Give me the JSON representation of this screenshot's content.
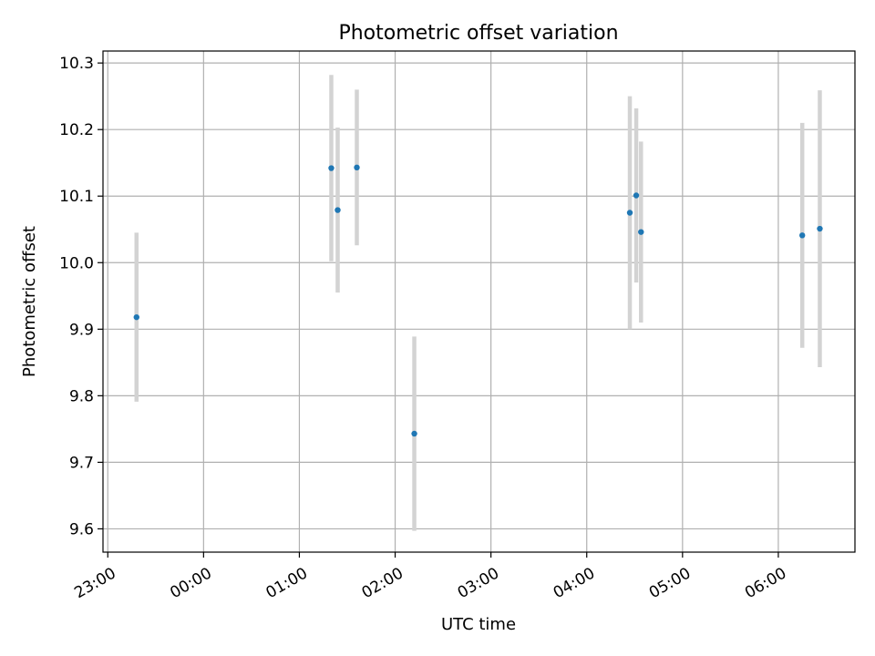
{
  "chart_data": {
    "type": "scatter",
    "title": "Photometric offset variation",
    "xlabel": "UTC time",
    "ylabel": "Photometric offset",
    "xlim": [
      "22:57",
      "06:48"
    ],
    "ylim": [
      9.565,
      10.318
    ],
    "grid": true,
    "x_ticks": [
      "23:00",
      "00:00",
      "01:00",
      "02:00",
      "03:00",
      "04:00",
      "05:00",
      "06:00"
    ],
    "y_ticks": [
      9.6,
      9.7,
      9.8,
      9.9,
      10.0,
      10.1,
      10.2,
      10.3
    ],
    "point_color": "#1f77b4",
    "errorbar_color": "#d3d3d3",
    "points": [
      {
        "x": "23:18",
        "y": 9.918,
        "err": 0.127
      },
      {
        "x": "01:20",
        "y": 10.142,
        "err": 0.14
      },
      {
        "x": "01:24",
        "y": 10.079,
        "err": 0.124
      },
      {
        "x": "01:36",
        "y": 10.143,
        "err": 0.117
      },
      {
        "x": "02:12",
        "y": 9.743,
        "err": 0.146
      },
      {
        "x": "04:27",
        "y": 10.075,
        "err": 0.175
      },
      {
        "x": "04:31",
        "y": 10.101,
        "err": 0.131
      },
      {
        "x": "04:34",
        "y": 10.046,
        "err": 0.136
      },
      {
        "x": "06:15",
        "y": 10.041,
        "err": 0.169
      },
      {
        "x": "06:26",
        "y": 10.051,
        "err": 0.208
      }
    ]
  }
}
